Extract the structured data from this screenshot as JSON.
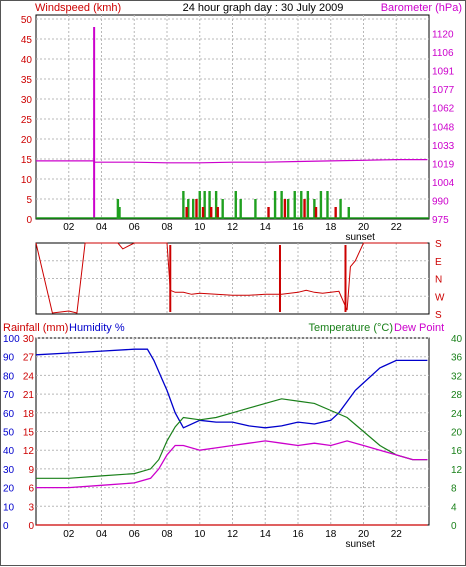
{
  "colors": {
    "windspeed": "#cc0000",
    "gust": "#1fa01f",
    "barometer": "#cc00cc",
    "direction": "#cc0000",
    "rain": "#cc0000",
    "humidity": "#0000cc",
    "temperature": "#1a801a",
    "dewpoint": "#cc00cc"
  },
  "chart_data": [
    {
      "type": "line",
      "title": "24 hour graph day : 30 July 2009",
      "ylabel_left": "Windspeed (kmh)",
      "ylabel_right": "Barometer (hPa)",
      "x_tick_labels": [
        "02",
        "04",
        "06",
        "08",
        "10",
        "12",
        "14",
        "16",
        "18",
        "20",
        "22"
      ],
      "sunset_label": "sunset",
      "ylim_left": [
        0,
        51
      ],
      "yticks_left": [
        "0",
        "5",
        "10",
        "15",
        "20",
        "25",
        "30",
        "35",
        "40",
        "45",
        "50"
      ],
      "ylim_right": [
        975,
        1133
      ],
      "yticks_right": [
        "975",
        "990",
        "1004",
        "1019",
        "1033",
        "1048",
        "1062",
        "1077",
        "1091",
        "1106",
        "1120"
      ],
      "series": [
        {
          "name": "Barometer (hPa)",
          "x": [
            0,
            3.5,
            3.6,
            6,
            8,
            10,
            12,
            14,
            16,
            18,
            20,
            22,
            23.9
          ],
          "values": [
            1020,
            1020,
            1019,
            1019,
            1018.5,
            1018.5,
            1019,
            1019,
            1019.5,
            1020,
            1020.5,
            1021,
            1021
          ]
        },
        {
          "name": "Windspeed spike",
          "x": [
            3.55
          ],
          "values": [
            48
          ]
        },
        {
          "name": "Gust (kmh)",
          "x": [
            5,
            5.1,
            9,
            9.3,
            9.6,
            10,
            10.3,
            10.6,
            11,
            11.4,
            12.2,
            12.5,
            13.4,
            14.6,
            15,
            15.4,
            15.8,
            16.2,
            16.6,
            17,
            17.4,
            17.8,
            18.6,
            19.1
          ],
          "values": [
            5,
            3,
            7,
            5,
            5,
            7,
            7,
            7,
            7,
            5,
            7,
            5,
            5,
            7,
            7,
            5,
            7,
            7,
            7,
            5,
            7,
            7,
            5,
            3
          ]
        },
        {
          "name": "Windspeed (kmh)",
          "x": [
            9.2,
            9.8,
            10.2,
            10.7,
            11.1,
            14.2,
            15.2,
            16.4,
            17.1,
            18.3
          ],
          "values": [
            3,
            5,
            3,
            3,
            3,
            3,
            5,
            5,
            3,
            3
          ]
        }
      ]
    },
    {
      "type": "line",
      "title": "",
      "direction_labels": [
        "S",
        "E",
        "N",
        "W",
        "S"
      ],
      "series": [
        {
          "name": "Wind direction",
          "x": [
            0,
            1,
            1.5,
            2,
            2.5,
            3,
            3.2,
            5,
            5.3,
            6,
            7,
            8,
            8.2,
            8.5,
            9,
            9.5,
            10,
            11,
            12,
            13,
            14,
            15,
            16,
            16.5,
            17,
            17.5,
            18,
            18.5,
            19,
            19.2,
            19.5,
            20,
            21,
            23.9
          ],
          "values": [
            180,
            185,
            190,
            195,
            185,
            180,
            180,
            180,
            150,
            180,
            180,
            180,
            300,
            290,
            290,
            280,
            285,
            280,
            275,
            275,
            280,
            280,
            290,
            300,
            290,
            285,
            290,
            295,
            200,
            60,
            90,
            180,
            180,
            180
          ]
        }
      ]
    },
    {
      "type": "line",
      "title": "",
      "ylabel_left_1": "Rainfall (mm)",
      "ylabel_left_2": "Humidity %",
      "ylabel_right_1": "Temperature (°C)",
      "ylabel_right_2": "Dew Point",
      "x_tick_labels": [
        "02",
        "04",
        "06",
        "08",
        "10",
        "12",
        "14",
        "16",
        "18",
        "20",
        "22"
      ],
      "sunset_label": "sunset",
      "rain_ticks": [
        "0",
        "3",
        "6",
        "9",
        "12",
        "15",
        "18",
        "21",
        "24",
        "27",
        "30"
      ],
      "humidity_ticks": [
        "0",
        "10",
        "20",
        "30",
        "40",
        "50",
        "60",
        "70",
        "80",
        "90",
        "100"
      ],
      "temp_ticks": [
        "0",
        "4",
        "8",
        "12",
        "16",
        "20",
        "24",
        "28",
        "32",
        "36",
        "40"
      ],
      "ylim_rain": [
        0,
        30
      ],
      "ylim_humidity": [
        0,
        100
      ],
      "ylim_temp": [
        0,
        40
      ],
      "series": [
        {
          "name": "Humidity %",
          "x": [
            0,
            2,
            4,
            6,
            6.8,
            7.2,
            7.6,
            8,
            8.5,
            9,
            10,
            11,
            12,
            13,
            14,
            15,
            16,
            17,
            18,
            18.5,
            19,
            19.5,
            20,
            21,
            22,
            23.9
          ],
          "values": [
            91,
            92,
            93,
            94,
            94,
            88,
            80,
            72,
            60,
            52,
            56,
            55,
            55,
            53,
            52,
            53,
            55,
            54,
            56,
            60,
            66,
            72,
            76,
            84,
            88,
            88
          ]
        },
        {
          "name": "Temperature (°C)",
          "x": [
            0,
            2,
            4,
            6,
            7,
            7.5,
            8,
            8.5,
            9,
            10,
            11,
            12,
            13,
            14,
            15,
            16,
            17,
            18,
            19,
            20,
            21,
            22,
            23,
            23.9
          ],
          "values": [
            10,
            10,
            10.5,
            11,
            12,
            14,
            18,
            21,
            23,
            22.5,
            23,
            24,
            25,
            26,
            27,
            26.5,
            26,
            24.5,
            23,
            20,
            17,
            15,
            14,
            14
          ]
        },
        {
          "name": "Dew Point",
          "x": [
            0,
            2,
            4,
            6,
            7,
            7.5,
            8,
            8.5,
            9,
            10,
            11,
            12,
            13,
            14,
            15,
            16,
            17,
            18,
            19,
            20,
            21,
            22,
            23,
            23.9
          ],
          "values": [
            8,
            8,
            8.5,
            9,
            10,
            12,
            15,
            17,
            17,
            16,
            16.5,
            17,
            17.5,
            18,
            17.5,
            17,
            17.5,
            17,
            18,
            17,
            16,
            15,
            14,
            14
          ]
        },
        {
          "name": "Rainfall (mm)",
          "x": [
            0,
            23.9
          ],
          "values": [
            0,
            0
          ]
        }
      ]
    }
  ]
}
